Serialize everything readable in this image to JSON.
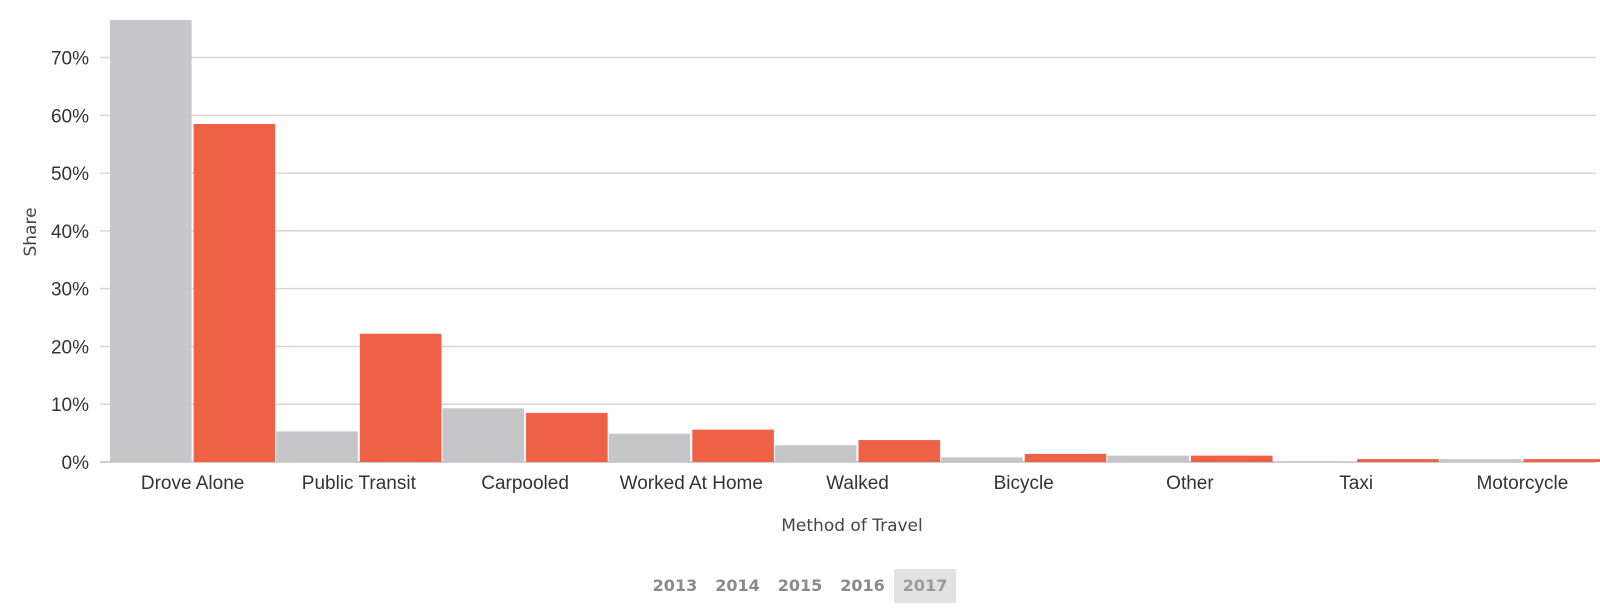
{
  "chart_data": {
    "type": "bar",
    "categories": [
      "Drove Alone",
      "Public Transit",
      "Carpooled",
      "Worked At Home",
      "Walked",
      "Bicycle",
      "Other",
      "Taxi",
      "Motorcycle"
    ],
    "series": [
      {
        "values": [
          76.5,
          5.3,
          9.3,
          4.9,
          2.9,
          0.8,
          1.1,
          0.1,
          0.5
        ],
        "color": "#c6c6c9"
      },
      {
        "values": [
          58.5,
          22.2,
          8.5,
          5.6,
          3.8,
          1.4,
          1.1,
          0.5,
          0.5
        ],
        "color": "#ee6145"
      }
    ],
    "xlabel": "Method of Travel",
    "ylabel": "Share",
    "ylim": [
      0,
      76.5
    ],
    "yticks": [
      0,
      10,
      20,
      30,
      40,
      50,
      60,
      70
    ],
    "ytick_labels": [
      "0%",
      "10%",
      "20%",
      "30%",
      "40%",
      "50%",
      "60%",
      "70%"
    ],
    "grid": true
  },
  "controls": {
    "years": [
      "2013",
      "2014",
      "2015",
      "2016",
      "2017"
    ],
    "selected_year": "2017"
  }
}
